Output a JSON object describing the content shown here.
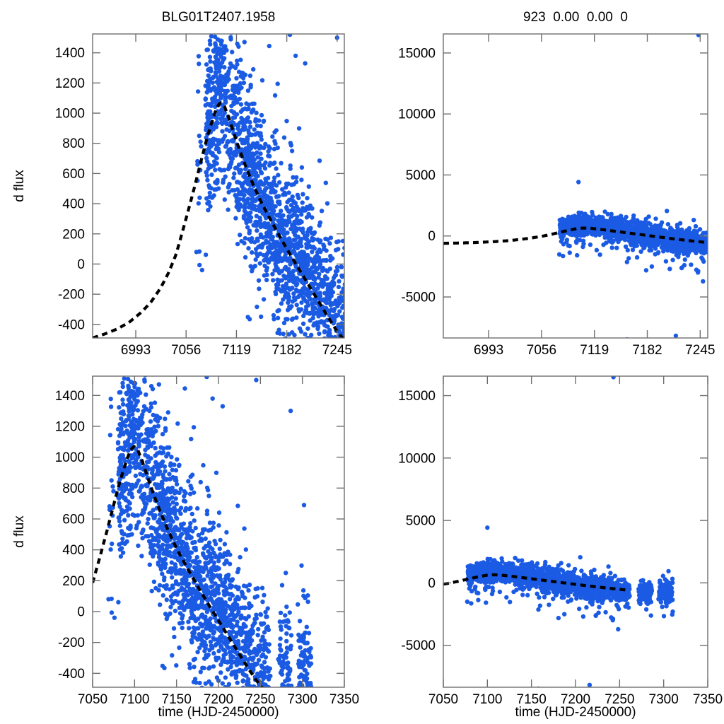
{
  "colors": {
    "point_blue": "#1b5be4",
    "curve_black": "#000000",
    "frame_gray": "#6e6e6e",
    "text_black": "#000000",
    "background": "#ffffff"
  },
  "chart_data": {
    "type": "scatter",
    "description": "Four-panel microlensing light-curve fit: left column is difference flux (d flux) of band 1, right column is band 2; top row x-range 6939-7254, bottom row x-range 7050-7350 (HJD-2450000). Blue dots = data, thick dashed black line = model.",
    "panels": [
      {
        "id": "top_left",
        "title": "BLG01T2407.1958",
        "dataset": "dflux",
        "ylabel": "d flux",
        "xlabel": "",
        "xlim": [
          6939,
          7254
        ],
        "ylim": [
          -490,
          1525
        ],
        "xticks": [
          6993,
          7056,
          7119,
          7182,
          7245
        ],
        "yticks": [
          -400,
          -200,
          0,
          200,
          400,
          600,
          800,
          1000,
          1200,
          1400
        ],
        "legend": "none",
        "grid": false
      },
      {
        "id": "top_right",
        "title": "923  0.00  0.00  0",
        "dataset": "flux2",
        "ylabel": "",
        "xlabel": "",
        "xlim": [
          6939,
          7254
        ],
        "ylim": [
          -8360,
          16560
        ],
        "xticks": [
          6993,
          7056,
          7119,
          7182,
          7245
        ],
        "yticks": [
          -5000,
          0,
          5000,
          10000,
          15000
        ],
        "legend": "none",
        "grid": false
      },
      {
        "id": "bottom_left",
        "title": "",
        "dataset": "dflux",
        "ylabel": "d flux",
        "xlabel": "time (HJD-2450000)",
        "xlim": [
          7050,
          7350
        ],
        "ylim": [
          -490,
          1525
        ],
        "xticks": [
          7050,
          7100,
          7150,
          7200,
          7250,
          7300,
          7350
        ],
        "yticks": [
          -400,
          -200,
          0,
          200,
          400,
          600,
          800,
          1000,
          1200,
          1400
        ],
        "legend": "none",
        "grid": false
      },
      {
        "id": "bottom_right",
        "title": "",
        "dataset": "flux2",
        "ylabel": "",
        "xlabel": "time (HJD-2450000)",
        "xlim": [
          7050,
          7350
        ],
        "ylim": [
          -8360,
          16560
        ],
        "xticks": [
          7050,
          7100,
          7150,
          7200,
          7250,
          7300,
          7350
        ],
        "yticks": [
          -5000,
          0,
          5000,
          10000,
          15000
        ],
        "legend": "none",
        "grid": false
      }
    ],
    "datasets": {
      "dflux": {
        "model_curve": [
          [
            6939,
            -490
          ],
          [
            6955,
            -462
          ],
          [
            6970,
            -430
          ],
          [
            6985,
            -385
          ],
          [
            7000,
            -320
          ],
          [
            7012,
            -252
          ],
          [
            7024,
            -160
          ],
          [
            7034,
            -58
          ],
          [
            7043,
            58
          ],
          [
            7051,
            205
          ],
          [
            7059,
            360
          ],
          [
            7067,
            520
          ],
          [
            7075,
            690
          ],
          [
            7082,
            832
          ],
          [
            7088,
            938
          ],
          [
            7093,
            1018
          ],
          [
            7097,
            1060
          ],
          [
            7100,
            1070
          ],
          [
            7104,
            1045
          ],
          [
            7109,
            975
          ],
          [
            7115,
            880
          ],
          [
            7122,
            770
          ],
          [
            7130,
            655
          ],
          [
            7140,
            525
          ],
          [
            7150,
            410
          ],
          [
            7162,
            290
          ],
          [
            7174,
            175
          ],
          [
            7186,
            65
          ],
          [
            7198,
            -40
          ],
          [
            7210,
            -145
          ],
          [
            7222,
            -250
          ],
          [
            7234,
            -355
          ],
          [
            7244,
            -438
          ],
          [
            7252,
            -492
          ],
          [
            7258,
            -525
          ],
          [
            7264,
            -560
          ]
        ],
        "epoch_groups": [
          {
            "t0": 7071,
            "t1": 7076,
            "step": 1.7,
            "per_night": 6,
            "sigma": 330,
            "offset": 50
          },
          {
            "t0": 7081,
            "t1": 7106,
            "step": 1,
            "per_night": 12,
            "sigma": 285,
            "offset": 80
          },
          {
            "t0": 7107,
            "t1": 7130,
            "step": 1,
            "per_night": 10,
            "sigma": 300,
            "offset": 50
          },
          {
            "t0": 7131,
            "t1": 7158,
            "step": 1,
            "per_night": 11,
            "sigma": 280,
            "offset": 30
          },
          {
            "t0": 7159,
            "t1": 7185,
            "step": 1,
            "per_night": 11,
            "sigma": 270,
            "offset": 10
          },
          {
            "t0": 7186,
            "t1": 7235,
            "step": 1,
            "per_night": 10,
            "sigma": 260,
            "offset": 60
          },
          {
            "t0": 7236,
            "t1": 7261,
            "step": 1,
            "per_night": 8,
            "sigma": 235,
            "offset": 120
          },
          {
            "t0": 7272,
            "t1": 7286,
            "step": 1,
            "per_night": 7,
            "sigma": 225,
            "offset": 160
          },
          {
            "t0": 7295,
            "t1": 7310,
            "step": 1,
            "per_night": 7,
            "sigma": 225,
            "offset": 180
          }
        ],
        "tails": {
          "high_prob": 0.015,
          "high_min": 300,
          "high_max": 700,
          "low_prob": 0.03,
          "low_min": 150,
          "low_max": 450
        },
        "outliers": [
          [
            7069,
            80
          ],
          [
            7076,
            -40
          ],
          [
            7112,
            1490
          ],
          [
            7120,
            1460
          ],
          [
            7140,
            1290
          ],
          [
            7160,
            1445
          ],
          [
            7186,
            1520
          ],
          [
            7193,
            1380
          ],
          [
            7205,
            1330
          ],
          [
            7245,
            1500
          ],
          [
            7286,
            1300
          ],
          [
            7302,
            690
          ]
        ]
      },
      "flux2": {
        "model_curve": [
          [
            6939,
            -600
          ],
          [
            6960,
            -575
          ],
          [
            6980,
            -530
          ],
          [
            7000,
            -462
          ],
          [
            7015,
            -390
          ],
          [
            7030,
            -290
          ],
          [
            7045,
            -155
          ],
          [
            7058,
            -5
          ],
          [
            7070,
            170
          ],
          [
            7080,
            340
          ],
          [
            7090,
            490
          ],
          [
            7098,
            600
          ],
          [
            7106,
            650
          ],
          [
            7114,
            630
          ],
          [
            7124,
            560
          ],
          [
            7136,
            455
          ],
          [
            7150,
            330
          ],
          [
            7165,
            195
          ],
          [
            7180,
            60
          ],
          [
            7195,
            -75
          ],
          [
            7210,
            -205
          ],
          [
            7225,
            -330
          ],
          [
            7240,
            -445
          ],
          [
            7252,
            -530
          ],
          [
            7260,
            -580
          ]
        ],
        "epoch_groups": [
          {
            "t0": 7078,
            "t1": 7106,
            "step": 1,
            "per_night": 10,
            "sigma": 380,
            "offset": 350
          },
          {
            "t0": 7107,
            "t1": 7130,
            "step": 1,
            "per_night": 9,
            "sigma": 380,
            "offset": 280
          },
          {
            "t0": 7131,
            "t1": 7160,
            "step": 1,
            "per_night": 9,
            "sigma": 420,
            "offset": 120
          },
          {
            "t0": 7161,
            "t1": 7200,
            "step": 1,
            "per_night": 9,
            "sigma": 470,
            "offset": 0
          },
          {
            "t0": 7201,
            "t1": 7240,
            "step": 1,
            "per_night": 9,
            "sigma": 500,
            "offset": -60
          },
          {
            "t0": 7241,
            "t1": 7261,
            "step": 1,
            "per_night": 8,
            "sigma": 460,
            "offset": -110
          },
          {
            "t0": 7272,
            "t1": 7286,
            "step": 1,
            "per_night": 7,
            "sigma": 460,
            "offset": -160
          },
          {
            "t0": 7295,
            "t1": 7310,
            "step": 1,
            "per_night": 7,
            "sigma": 540,
            "offset": -210
          }
        ],
        "tails": {
          "high_prob": 0.008,
          "high_min": 600,
          "high_max": 1500,
          "low_prob": 0.05,
          "low_min": 500,
          "low_max": 2300
        },
        "outliers": [
          [
            7243,
            16480
          ],
          [
            7100,
            4420
          ],
          [
            7158,
            -8480
          ],
          [
            7216,
            -8180
          ]
        ]
      }
    }
  }
}
